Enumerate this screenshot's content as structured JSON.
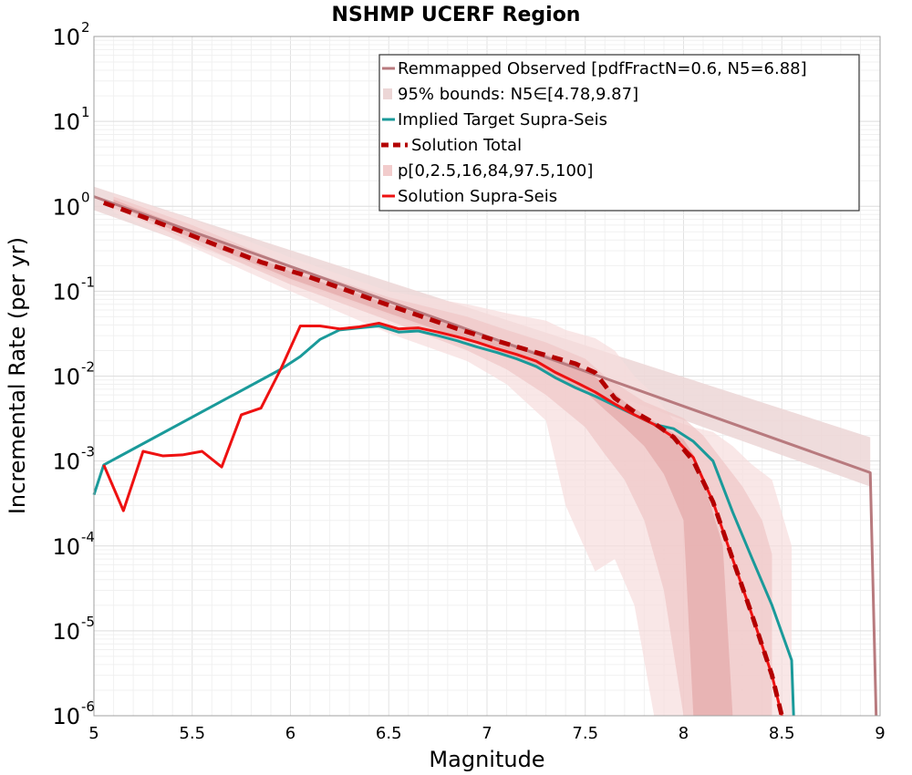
{
  "chart_data": {
    "type": "line",
    "title": "NSHMP UCERF Region",
    "xlabel": "Magnitude",
    "ylabel": "Incremental Rate (per yr)",
    "xlim": [
      5,
      9
    ],
    "ylim": [
      1e-06,
      100
    ],
    "yscale": "log",
    "grid": true,
    "legend_position": "top-right",
    "x_ticks": [
      "5",
      "5.5",
      "6",
      "6.5",
      "7",
      "7.5",
      "8",
      "8.5",
      "9"
    ],
    "y_ticks": [
      {
        "base": "10",
        "exp": "-6"
      },
      {
        "base": "10",
        "exp": "-5"
      },
      {
        "base": "10",
        "exp": "-4"
      },
      {
        "base": "10",
        "exp": "-3"
      },
      {
        "base": "10",
        "exp": "-2"
      },
      {
        "base": "10",
        "exp": "-1"
      },
      {
        "base": "10",
        "exp": "0"
      },
      {
        "base": "10",
        "exp": "1"
      },
      {
        "base": "10",
        "exp": "2"
      }
    ],
    "legend": [
      {
        "label": "Remmapped Observed [pdfFractN=0.6, N5=6.88]",
        "style": "line",
        "color": "#b87a7e"
      },
      {
        "label": "95% bounds: N5∈[4.78,9.87]",
        "style": "box",
        "color": "#ecd6d6"
      },
      {
        "label": "Implied Target Supra-Seis",
        "style": "line",
        "color": "#1a9a9a"
      },
      {
        "label": "Solution Total",
        "style": "dash",
        "color": "#b30000"
      },
      {
        "label": "p[0,2.5,16,84,97.5,100]",
        "style": "box",
        "color": "#f2cccc"
      },
      {
        "label": "Solution Supra-Seis",
        "style": "line",
        "color": "#ee1111"
      }
    ],
    "series": [
      {
        "name": "Remmapped Observed [pdfFractN=0.6, N5=6.88]",
        "color": "#b87a7e",
        "x": [
          5.0,
          8.95,
          8.98
        ],
        "y": [
          1.3,
          0.00073,
          1e-06
        ]
      },
      {
        "name": "Implied Target Supra-Seis",
        "color": "#1a9a9a",
        "x": [
          5.0,
          5.05,
          5.95,
          6.05,
          6.15,
          6.25,
          6.35,
          6.45,
          6.55,
          6.65,
          6.75,
          6.85,
          6.95,
          7.05,
          7.15,
          7.25,
          7.35,
          7.45,
          7.55,
          7.65,
          7.75,
          7.85,
          7.95,
          8.05,
          8.15,
          8.25,
          8.35,
          8.45,
          8.55,
          8.56
        ],
        "y": [
          0.0004,
          0.0009,
          0.012,
          0.017,
          0.027,
          0.035,
          0.037,
          0.039,
          0.033,
          0.034,
          0.03,
          0.026,
          0.022,
          0.019,
          0.016,
          0.013,
          0.0095,
          0.0073,
          0.0058,
          0.0045,
          0.0035,
          0.0027,
          0.0024,
          0.0017,
          0.001,
          0.00025,
          7e-05,
          2e-05,
          4.5e-06,
          1e-06
        ]
      },
      {
        "name": "Solution Total",
        "color": "#b30000",
        "x": [
          5.05,
          5.25,
          5.45,
          5.65,
          5.85,
          6.05,
          6.25,
          6.45,
          6.65,
          6.85,
          7.05,
          7.25,
          7.45,
          7.55,
          7.65,
          7.75,
          7.85,
          7.95,
          8.05,
          8.15,
          8.25,
          8.35,
          8.45,
          8.5
        ],
        "y": [
          1.1,
          0.75,
          0.5,
          0.33,
          0.22,
          0.16,
          0.11,
          0.075,
          0.052,
          0.036,
          0.026,
          0.019,
          0.014,
          0.011,
          0.0055,
          0.0038,
          0.0028,
          0.0019,
          0.001,
          0.00033,
          7e-05,
          1.5e-05,
          3e-06,
          1e-06
        ]
      },
      {
        "name": "Solution Supra-Seis",
        "color": "#ee1111",
        "x": [
          5.05,
          5.15,
          5.25,
          5.35,
          5.45,
          5.55,
          5.65,
          5.75,
          5.85,
          5.95,
          6.05,
          6.15,
          6.25,
          6.35,
          6.45,
          6.55,
          6.65,
          6.75,
          6.85,
          6.95,
          7.05,
          7.15,
          7.25,
          7.35,
          7.45,
          7.55,
          7.65,
          7.75,
          7.85,
          7.95,
          8.05,
          8.15,
          8.25,
          8.35,
          8.45,
          8.5
        ],
        "y": [
          0.0009,
          0.00026,
          0.0013,
          0.00115,
          0.00118,
          0.0013,
          0.00085,
          0.0035,
          0.0042,
          0.012,
          0.039,
          0.039,
          0.036,
          0.038,
          0.042,
          0.036,
          0.037,
          0.033,
          0.029,
          0.025,
          0.021,
          0.018,
          0.015,
          0.011,
          0.0085,
          0.0065,
          0.0047,
          0.0035,
          0.0027,
          0.0019,
          0.0011,
          0.00033,
          7e-05,
          1.5e-05,
          3e-06,
          1e-06
        ]
      }
    ],
    "bands": [
      {
        "name": "95% bounds: N5∈[4.78,9.87]",
        "color": "#ecd6d6",
        "x": [
          5.0,
          8.95
        ],
        "y_low": [
          0.9,
          0.0005
        ],
        "y_high": [
          1.7,
          0.0019
        ]
      },
      {
        "name": "p[0,2.5,16,84,97.5,100] (outer)",
        "color": "#f6dddd",
        "x": [
          5.1,
          5.5,
          6.0,
          6.5,
          6.9,
          7.1,
          7.3,
          7.4,
          7.55,
          7.65,
          7.75,
          7.85,
          7.95,
          8.05,
          8.15,
          8.25,
          8.35,
          8.45,
          8.55
        ],
        "y_low": [
          0.85,
          0.33,
          0.1,
          0.032,
          0.015,
          0.008,
          0.003,
          0.0003,
          5e-05,
          7e-05,
          2e-05,
          1e-06,
          1e-06,
          1e-06,
          1e-06,
          1e-06,
          1e-06,
          1e-06,
          1e-06
        ],
        "y_high": [
          1.4,
          0.7,
          0.25,
          0.1,
          0.07,
          0.055,
          0.045,
          0.035,
          0.028,
          0.02,
          0.01,
          0.006,
          0.003,
          0.0025,
          0.0022,
          0.0015,
          0.0009,
          0.0006,
          0.0001
        ]
      },
      {
        "name": "p[0,2.5,16,84,97.5,100] (middle)",
        "color": "#efc6c6",
        "x": [
          5.1,
          5.5,
          6.0,
          6.5,
          6.9,
          7.1,
          7.3,
          7.5,
          7.6,
          7.7,
          7.8,
          7.9,
          8.0,
          8.1,
          8.2,
          8.3,
          8.4,
          8.45
        ],
        "y_low": [
          0.95,
          0.38,
          0.12,
          0.045,
          0.02,
          0.012,
          0.006,
          0.0025,
          0.0012,
          0.0006,
          0.0002,
          3e-05,
          1e-06,
          1e-06,
          1e-06,
          1e-06,
          1e-06,
          1e-06
        ],
        "y_high": [
          1.3,
          0.6,
          0.2,
          0.085,
          0.05,
          0.035,
          0.025,
          0.016,
          0.01,
          0.007,
          0.005,
          0.004,
          0.0032,
          0.002,
          0.001,
          0.0005,
          0.0002,
          8e-05
        ]
      },
      {
        "name": "p[0,2.5,16,84,97.5,100] (inner)",
        "color": "#e4a8a8",
        "x": [
          5.1,
          5.5,
          6.0,
          6.5,
          7.0,
          7.3,
          7.5,
          7.6,
          7.7,
          7.8,
          7.9,
          8.0,
          8.05,
          8.1,
          8.2,
          8.25
        ],
        "y_low": [
          1.05,
          0.42,
          0.14,
          0.055,
          0.022,
          0.011,
          0.0065,
          0.004,
          0.0025,
          0.0015,
          0.0007,
          0.0002,
          1e-06,
          1e-06,
          1e-06,
          1e-06
        ],
        "y_high": [
          1.2,
          0.52,
          0.17,
          0.07,
          0.03,
          0.018,
          0.012,
          0.008,
          0.005,
          0.0035,
          0.0025,
          0.0018,
          0.0012,
          0.0006,
          0.0001,
          1e-06
        ]
      }
    ]
  }
}
